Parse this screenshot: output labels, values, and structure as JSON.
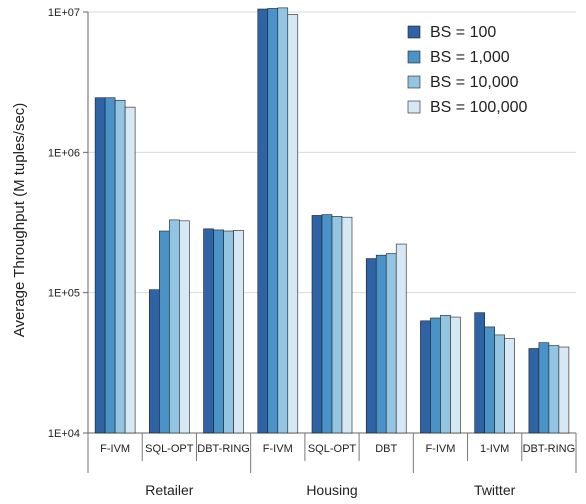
{
  "chart_data": {
    "type": "bar",
    "title": "",
    "ylabel": "Average Throughput (M tuples/sec)",
    "xlabel": "",
    "yscale": "log",
    "ylim": [
      10000,
      10000000
    ],
    "yticks": [
      "1E+04",
      "1E+05",
      "1E+06",
      "1E+07"
    ],
    "grid": "horizontal",
    "legend_position": "top-right",
    "groups": [
      {
        "name": "Retailer",
        "categories": [
          "F-IVM",
          "SQL-OPT",
          "DBT-RING"
        ]
      },
      {
        "name": "Housing",
        "categories": [
          "F-IVM",
          "SQL-OPT",
          "DBT"
        ]
      },
      {
        "name": "Twitter",
        "categories": [
          "F-IVM",
          "1-IVM",
          "DBT-RING"
        ]
      }
    ],
    "categories": [
      "F-IVM",
      "SQL-OPT",
      "DBT-RING",
      "F-IVM",
      "SQL-OPT",
      "DBT",
      "F-IVM",
      "1-IVM",
      "DBT-RING"
    ],
    "series": [
      {
        "name": "BS = 100",
        "color": "#2e63a6",
        "values": [
          2450000,
          105000,
          285000,
          10500000,
          355000,
          175000,
          63000,
          72000,
          40000
        ]
      },
      {
        "name": "BS = 1,000",
        "color": "#4a93c9",
        "values": [
          2450000,
          275000,
          280000,
          10600000,
          360000,
          185000,
          66000,
          57000,
          44000
        ]
      },
      {
        "name": "BS = 10,000",
        "color": "#93c5e3",
        "values": [
          2350000,
          330000,
          275000,
          10700000,
          350000,
          190000,
          69000,
          50000,
          42000
        ]
      },
      {
        "name": "BS = 100,000",
        "color": "#d6e8f4",
        "values": [
          2100000,
          325000,
          278000,
          9600000,
          345000,
          222000,
          67000,
          47000,
          41000
        ]
      }
    ]
  }
}
